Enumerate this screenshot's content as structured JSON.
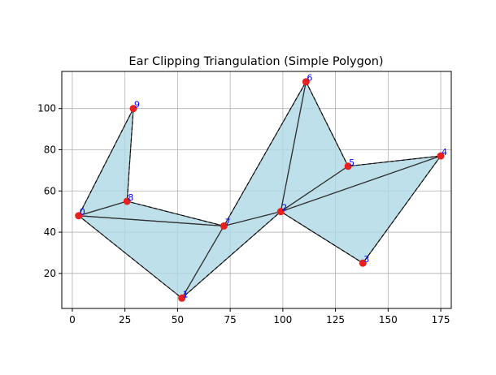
{
  "chart_data": {
    "type": "scatter",
    "title": "Ear Clipping Triangulation (Simple Polygon)",
    "xlabel": "",
    "ylabel": "",
    "xlim": [
      -5,
      180
    ],
    "ylim": [
      3,
      118
    ],
    "xticks": [
      0,
      25,
      50,
      75,
      100,
      125,
      150,
      175
    ],
    "yticks": [
      20,
      40,
      60,
      80,
      100
    ],
    "grid": true,
    "colors": {
      "fill": "#add8e6",
      "edge": "#333333",
      "point": "#e8201e",
      "label": "#0000ff",
      "grid": "#b0b0b0"
    },
    "points": [
      {
        "label": "0",
        "x": 3,
        "y": 48
      },
      {
        "label": "1",
        "x": 52,
        "y": 8
      },
      {
        "label": "2",
        "x": 99,
        "y": 50
      },
      {
        "label": "3",
        "x": 138,
        "y": 25
      },
      {
        "label": "4",
        "x": 175,
        "y": 77
      },
      {
        "label": "5",
        "x": 131,
        "y": 72
      },
      {
        "label": "6",
        "x": 111,
        "y": 113
      },
      {
        "label": "7",
        "x": 72,
        "y": 43
      },
      {
        "label": "8",
        "x": 26,
        "y": 55
      },
      {
        "label": "9",
        "x": 29,
        "y": 100
      }
    ],
    "polygon_order": [
      0,
      1,
      2,
      3,
      4,
      5,
      6,
      7,
      8,
      9
    ],
    "triangles": [
      [
        9,
        0,
        8
      ],
      [
        8,
        0,
        7
      ],
      [
        0,
        1,
        7
      ],
      [
        1,
        2,
        7
      ],
      [
        7,
        2,
        6
      ],
      [
        6,
        2,
        5
      ],
      [
        5,
        2,
        4
      ],
      [
        2,
        3,
        4
      ]
    ]
  }
}
